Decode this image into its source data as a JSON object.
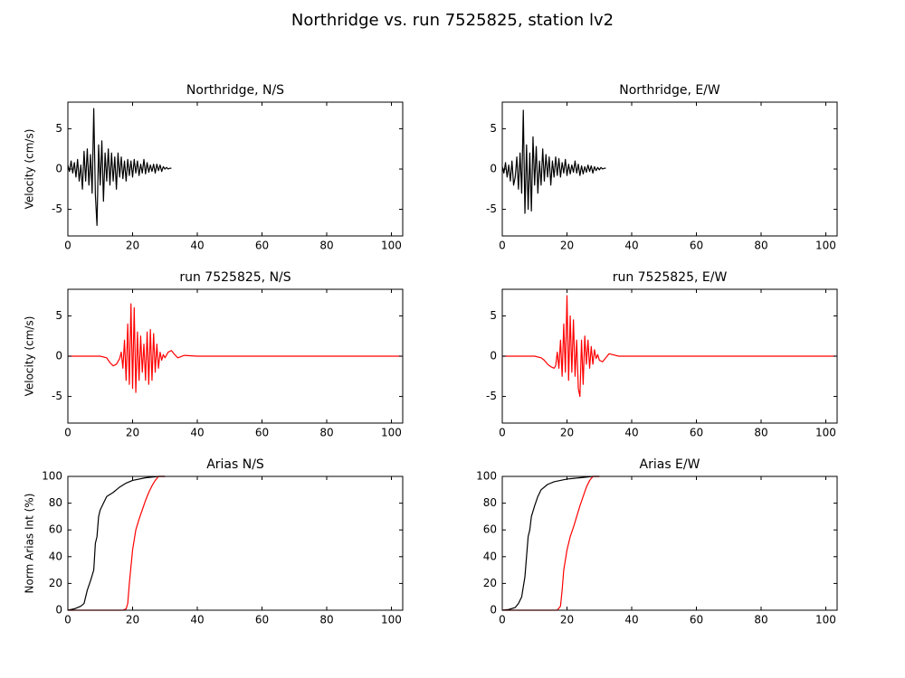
{
  "title": "Northridge vs. run 7525825, station lv2",
  "chart_data": [
    {
      "type": "line",
      "title": "Northridge, N/S",
      "ylabel": "Velocity (cm/s)",
      "xlim": [
        0,
        103.5
      ],
      "ylim": [
        -8.3,
        8.3
      ],
      "xticks": [
        0,
        20,
        40,
        60,
        80,
        100
      ],
      "yticks": [
        -5,
        0,
        5
      ],
      "series": [
        {
          "color": "#000000",
          "x": [
            0,
            0.5,
            1,
            1.5,
            2,
            2.5,
            3,
            3.5,
            4,
            4.5,
            5,
            5.5,
            6,
            6.5,
            7,
            7.5,
            8,
            8.5,
            9,
            9.5,
            10,
            10.5,
            11,
            11.5,
            12,
            12.5,
            13,
            13.5,
            14,
            14.5,
            15,
            15.5,
            16,
            16.5,
            17,
            17.5,
            18,
            18.5,
            19,
            19.5,
            20,
            20.5,
            21,
            21.5,
            22,
            22.5,
            23,
            23.5,
            24,
            24.5,
            25,
            25.5,
            26,
            26.5,
            27,
            27.5,
            28,
            28.5,
            29,
            29.5,
            30,
            30.5,
            31,
            31.5,
            32
          ],
          "values": [
            0.5,
            -0.3,
            1,
            -0.5,
            0.8,
            -1,
            1.2,
            -1.5,
            0.5,
            -2.5,
            2.2,
            -1.5,
            2.5,
            -2,
            1.8,
            -3,
            7.5,
            -3.2,
            -7,
            3,
            -2,
            3.5,
            -4,
            2,
            -1.5,
            2.5,
            -2,
            2,
            -1.5,
            1.5,
            -2.5,
            2,
            -1,
            1.5,
            -1.2,
            1,
            -1.5,
            1.2,
            -0.8,
            1,
            -1,
            1.2,
            -0.5,
            1,
            -0.8,
            0.6,
            -0.5,
            1.2,
            -0.6,
            0.8,
            -0.4,
            0.5,
            -0.3,
            0.6,
            -0.5,
            0.6,
            -0.2,
            0.5,
            -0.3,
            0.3,
            0,
            0.2,
            0,
            0.1,
            0.1
          ]
        }
      ]
    },
    {
      "type": "line",
      "title": "Northridge, E/W",
      "xlim": [
        0,
        103.5
      ],
      "ylim": [
        -8.3,
        8.3
      ],
      "xticks": [
        0,
        20,
        40,
        60,
        80,
        100
      ],
      "yticks": [
        -5,
        0,
        5
      ],
      "series": [
        {
          "color": "#000000",
          "x": [
            0,
            0.5,
            1,
            1.5,
            2,
            2.5,
            3,
            3.5,
            4,
            4.5,
            5,
            5.5,
            6,
            6.5,
            7,
            7.5,
            8,
            8.5,
            9,
            9.5,
            10,
            10.5,
            11,
            11.5,
            12,
            12.5,
            13,
            13.5,
            14,
            14.5,
            15,
            15.5,
            16,
            16.5,
            17,
            17.5,
            18,
            18.5,
            19,
            19.5,
            20,
            20.5,
            21,
            21.5,
            22,
            22.5,
            23,
            23.5,
            24,
            24.5,
            25,
            25.5,
            26,
            26.5,
            27,
            27.5,
            28,
            28.5,
            29,
            29.5,
            30,
            30.5,
            31,
            31.5,
            32
          ],
          "values": [
            0.3,
            -0.5,
            0.8,
            -1,
            0.5,
            -1.5,
            1,
            -2,
            -1,
            1.5,
            -2.5,
            2,
            -3,
            7.3,
            -5.5,
            3,
            -5,
            2,
            -5.2,
            4,
            -2,
            2.8,
            -3,
            1,
            -2,
            2.5,
            -1.5,
            1.8,
            -1,
            1.5,
            -2,
            1,
            -1,
            1.5,
            -0.8,
            1.3,
            -1,
            0.8,
            -0.5,
            1.2,
            -0.8,
            0.6,
            -0.6,
            0.5,
            -0.4,
            1,
            -0.5,
            0.6,
            -0.8,
            0.4,
            -0.6,
            0.3,
            -0.4,
            0.5,
            -0.3,
            0.4,
            -0.5,
            0.3,
            -0.2,
            0.2,
            -0.1,
            0.2,
            0,
            0.1,
            0.1
          ]
        }
      ]
    },
    {
      "type": "line",
      "title": "run 7525825, N/S",
      "ylabel": "Velocity (cm/s)",
      "xlim": [
        0,
        103.5
      ],
      "ylim": [
        -8.3,
        8.3
      ],
      "xticks": [
        0,
        20,
        40,
        60,
        80,
        100
      ],
      "yticks": [
        -5,
        0,
        5
      ],
      "series": [
        {
          "color": "#ff0000",
          "x": [
            0,
            5,
            10,
            12,
            13,
            14,
            15,
            16,
            16.5,
            17,
            17.5,
            18,
            18.5,
            19,
            19.5,
            20,
            20.5,
            21,
            21.5,
            22,
            22.5,
            23,
            23.5,
            24,
            24.5,
            25,
            25.5,
            26,
            26.5,
            27,
            27.5,
            28,
            28.5,
            29,
            29.5,
            30,
            31,
            32,
            33,
            34,
            36,
            40,
            50,
            60,
            70,
            80,
            90,
            100,
            103
          ],
          "values": [
            0,
            0,
            0,
            -0.2,
            -0.8,
            -1.2,
            -1,
            -0.3,
            0.5,
            -1.5,
            2,
            -3,
            4,
            -3.5,
            6.5,
            -4,
            6,
            -4.5,
            3,
            -3,
            2.5,
            -2,
            1.5,
            -3,
            3,
            -3.5,
            3.3,
            -3,
            2.8,
            -2,
            1.5,
            -1.5,
            0.5,
            -0.5,
            0.2,
            -0.2,
            0.5,
            0.7,
            0.2,
            -0.2,
            0.1,
            0,
            0,
            0,
            0,
            0,
            0,
            0,
            0
          ]
        }
      ]
    },
    {
      "type": "line",
      "title": "run 7525825, E/W",
      "xlim": [
        0,
        103.5
      ],
      "ylim": [
        -8.3,
        8.3
      ],
      "xticks": [
        0,
        20,
        40,
        60,
        80,
        100
      ],
      "yticks": [
        -5,
        0,
        5
      ],
      "series": [
        {
          "color": "#ff0000",
          "x": [
            0,
            5,
            10,
            12,
            13,
            14,
            15,
            16,
            16.5,
            17,
            17.5,
            18,
            18.5,
            19,
            19.5,
            20,
            20.5,
            21,
            21.5,
            22,
            22.5,
            23,
            23.5,
            24,
            24.5,
            25,
            25.5,
            26,
            26.5,
            27,
            27.5,
            28,
            28.5,
            29,
            29.5,
            30,
            31,
            32,
            33,
            34,
            36,
            40,
            50,
            60,
            70,
            80,
            90,
            100,
            103
          ],
          "values": [
            0,
            0,
            0,
            -0.2,
            -0.5,
            -1,
            -1.3,
            -1.5,
            -1.2,
            0.5,
            -1.5,
            2,
            -2.5,
            4,
            -2,
            7.5,
            -3,
            5,
            -2,
            4.5,
            -2.5,
            2,
            -4,
            -5,
            2,
            -3.5,
            2.5,
            -1,
            2,
            -1.5,
            1.2,
            -1,
            0.8,
            -0.3,
            0.2,
            -0.5,
            -0.7,
            -0.2,
            0.3,
            0.2,
            0,
            0,
            0,
            0,
            0,
            0,
            0,
            0,
            0
          ]
        }
      ]
    },
    {
      "type": "line",
      "title": "Arias N/S",
      "ylabel": "Norm Arias Int (%)",
      "xlim": [
        0,
        103.5
      ],
      "ylim": [
        0,
        100
      ],
      "xticks": [
        0,
        20,
        40,
        60,
        80,
        100
      ],
      "yticks": [
        0,
        20,
        40,
        60,
        80,
        100
      ],
      "series": [
        {
          "color": "#000000",
          "x": [
            0,
            2,
            4,
            5,
            6,
            7,
            8,
            8.5,
            9,
            9.5,
            10,
            11,
            12,
            14,
            16,
            18,
            20,
            24,
            28,
            30
          ],
          "values": [
            0,
            1,
            3,
            5,
            15,
            22,
            30,
            50,
            55,
            70,
            75,
            80,
            85,
            88,
            92,
            95,
            97,
            99,
            100,
            100
          ]
        },
        {
          "color": "#ff0000",
          "x": [
            0,
            17,
            18,
            18.5,
            19,
            20,
            21,
            22,
            23,
            24,
            25,
            26,
            27,
            28,
            30
          ],
          "values": [
            0,
            0,
            1,
            5,
            20,
            45,
            60,
            68,
            75,
            82,
            88,
            93,
            97,
            100,
            100
          ]
        }
      ]
    },
    {
      "type": "line",
      "title": "Arias E/W",
      "xlim": [
        0,
        103.5
      ],
      "ylim": [
        0,
        100
      ],
      "xticks": [
        0,
        20,
        40,
        60,
        80,
        100
      ],
      "yticks": [
        0,
        20,
        40,
        60,
        80,
        100
      ],
      "series": [
        {
          "color": "#000000",
          "x": [
            0,
            2,
            4,
            5,
            6,
            7,
            7.5,
            8,
            8.5,
            9,
            10,
            11,
            12,
            14,
            16,
            18,
            20,
            24,
            28,
            30
          ],
          "values": [
            0,
            0.5,
            2,
            5,
            10,
            25,
            40,
            55,
            60,
            70,
            78,
            85,
            90,
            94,
            96,
            97,
            98,
            99,
            100,
            100
          ]
        },
        {
          "color": "#ff0000",
          "x": [
            0,
            17,
            18,
            18.5,
            19,
            20,
            21,
            22,
            23,
            24,
            25,
            26,
            27,
            28,
            30
          ],
          "values": [
            0,
            0,
            3,
            15,
            30,
            45,
            55,
            62,
            70,
            78,
            85,
            92,
            97,
            100,
            100
          ]
        }
      ]
    }
  ]
}
